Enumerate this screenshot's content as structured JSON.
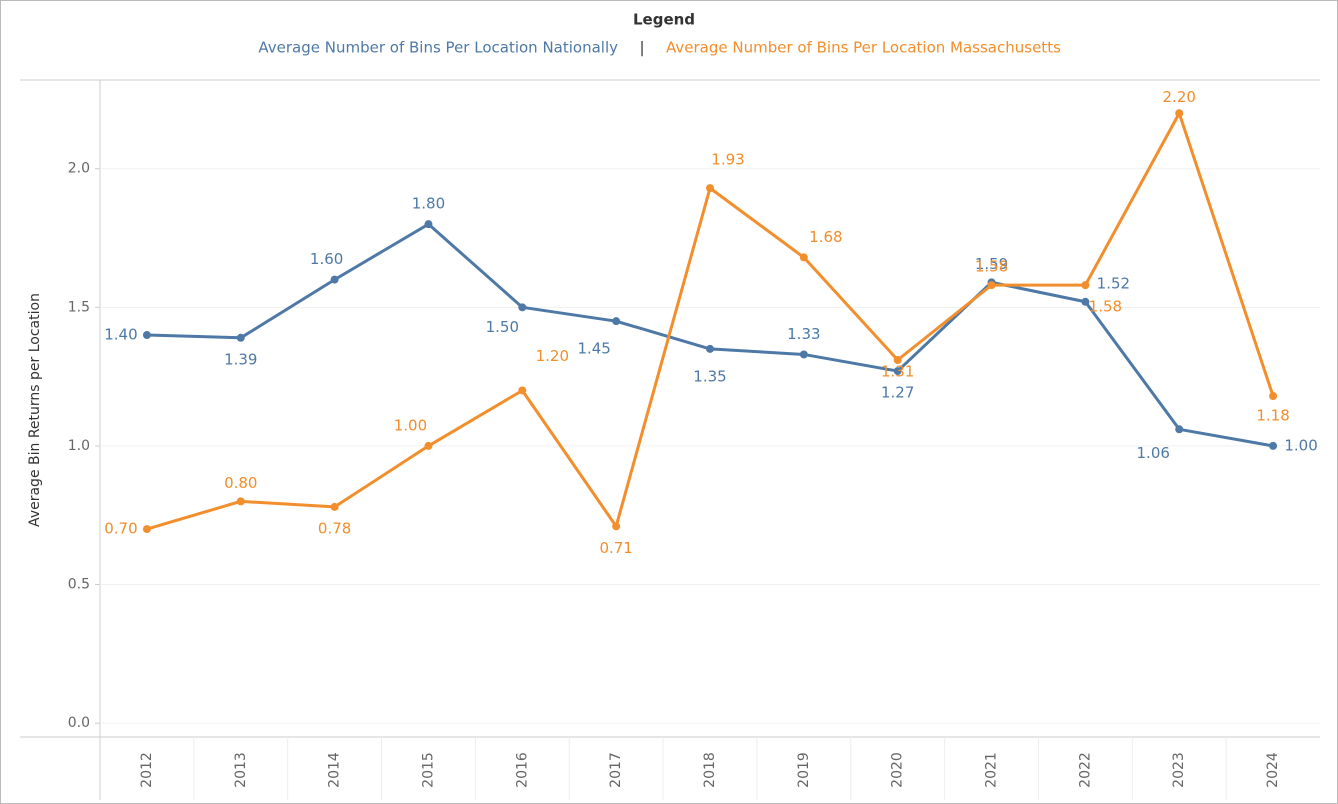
{
  "chart_data": {
    "type": "line",
    "legend_title": "Legend",
    "legend_separator": "|",
    "y_label": "Average Bin Returns per Location",
    "categories": [
      "2012",
      "2013",
      "2014",
      "2015",
      "2016",
      "2017",
      "2018",
      "2019",
      "2020",
      "2021",
      "2022",
      "2023",
      "2024"
    ],
    "series": [
      {
        "name": "Average Number of Bins Per Location Nationally",
        "color": "#4e79a7",
        "values": [
          1.4,
          1.39,
          1.6,
          1.8,
          1.5,
          1.45,
          1.35,
          1.33,
          1.27,
          1.59,
          1.52,
          1.06,
          1.0
        ],
        "value_labels": [
          "1.40",
          "1.39",
          "1.60",
          "1.80",
          "1.50",
          "1.45",
          "1.35",
          "1.33",
          "1.27",
          "1.59",
          "1.52",
          "1.06",
          "1.00"
        ]
      },
      {
        "name": "Average Number of Bins Per Location Massachusetts",
        "color": "#f28e2b",
        "values": [
          0.7,
          0.8,
          0.78,
          1.0,
          1.2,
          0.71,
          1.93,
          1.68,
          1.31,
          1.58,
          1.58,
          2.2,
          1.18
        ],
        "value_labels": [
          "0.70",
          "0.80",
          "0.78",
          "1.00",
          "1.20",
          "0.71",
          "1.93",
          "1.68",
          "1.31",
          "1.58",
          "1.58",
          "2.20",
          "1.18"
        ]
      }
    ],
    "ylim": [
      -0.05,
      2.32
    ],
    "yticks": [
      {
        "value": 0,
        "label": "0.0"
      },
      0.5,
      {
        "value": 1,
        "label": "1.0"
      },
      1.5,
      {
        "value": 2,
        "label": "2.0"
      }
    ],
    "grid": true
  }
}
